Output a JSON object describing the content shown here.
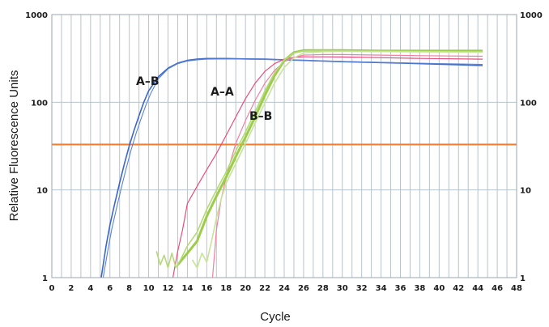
{
  "chart_data": {
    "type": "line",
    "xlabel": "Cycle",
    "ylabel": "Relative Fluorescence Units",
    "xlim": [
      0,
      48
    ],
    "x_ticks": [
      "0",
      "2",
      "4",
      "6",
      "8",
      "10",
      "12",
      "14",
      "16",
      "18",
      "20",
      "22",
      "24",
      "26",
      "28",
      "30",
      "32",
      "34",
      "36",
      "38",
      "40",
      "42",
      "44",
      "46",
      "48"
    ],
    "ylim": [
      1,
      1000
    ],
    "y_scale": "log",
    "y_ticks": [
      {
        "value": 1,
        "label": "1"
      },
      {
        "value": 10,
        "label": "10"
      },
      {
        "value": 100,
        "label": "100"
      },
      {
        "value": 1000,
        "label": "1000"
      }
    ],
    "y_ticks_right": true,
    "grid": true,
    "threshold": 33,
    "threshold_color": "#f07a2e",
    "background_color": "#ffffff",
    "grid_color": "#b8c4cc",
    "series": [
      {
        "name": "A–B",
        "color": "#3b67c9",
        "width": 1.6,
        "x": [
          5.1,
          5.6,
          6,
          6.5,
          7,
          7.5,
          8,
          8.5,
          9,
          9.5,
          10,
          11,
          12,
          13,
          14,
          15,
          16,
          17,
          18,
          20,
          22,
          24,
          26,
          30,
          36,
          40,
          44.5
        ],
        "y": [
          1,
          2.3,
          4,
          7,
          12,
          20,
          32,
          48,
          70,
          100,
          135,
          195,
          245,
          280,
          300,
          310,
          315,
          315,
          315,
          312,
          310,
          305,
          300,
          290,
          280,
          272,
          262
        ]
      },
      {
        "name": "",
        "color": "#5a82d6",
        "width": 1.1,
        "x": [
          5.3,
          5.8,
          6.2,
          6.7,
          7.2,
          7.7,
          8.2,
          8.7,
          9.2,
          9.7,
          10.2,
          11,
          12,
          13,
          14,
          15,
          16,
          18,
          20,
          24,
          30,
          36,
          44.5
        ],
        "y": [
          1,
          2.1,
          3.6,
          6.3,
          10.8,
          18,
          29,
          44,
          64,
          92,
          125,
          185,
          240,
          275,
          295,
          305,
          310,
          312,
          310,
          305,
          292,
          282,
          270
        ]
      },
      {
        "name": "A–A",
        "color": "#e84c7d",
        "width": 1.2,
        "x": [
          12.5,
          13,
          13.5,
          14,
          15,
          16,
          17,
          18,
          19,
          20,
          21,
          22,
          23,
          24,
          25,
          26,
          28,
          30,
          34,
          38,
          44.5
        ],
        "y": [
          1,
          2,
          3.5,
          7,
          11,
          17,
          26,
          42,
          68,
          110,
          165,
          225,
          275,
          310,
          325,
          330,
          330,
          328,
          322,
          316,
          310
        ]
      },
      {
        "name": "",
        "color": "#f07fa2",
        "width": 1.2,
        "x": [
          16.6,
          17,
          17.5,
          18,
          18.5,
          19,
          20,
          21,
          22,
          23,
          24,
          25,
          26,
          28,
          30,
          34,
          38,
          44.5
        ],
        "y": [
          1,
          3.5,
          8,
          14,
          22,
          34,
          62,
          105,
          165,
          230,
          290,
          325,
          345,
          350,
          350,
          345,
          340,
          335
        ]
      },
      {
        "name": "B–B",
        "color": "#9ccc4a",
        "width": 3,
        "x": [
          13,
          14,
          15,
          16,
          17,
          18,
          19,
          20,
          21,
          22,
          23,
          24,
          25,
          26,
          28,
          30,
          34,
          38,
          44.5
        ],
        "y": [
          1.4,
          1.9,
          2.6,
          5,
          8.5,
          14,
          24,
          40,
          68,
          120,
          200,
          300,
          370,
          390,
          390,
          390,
          385,
          385,
          385
        ]
      },
      {
        "name": "",
        "color": "#b4d977",
        "width": 1.6,
        "x": [
          10.8,
          11.2,
          11.6,
          12,
          12.4,
          12.8,
          13.3,
          14,
          15,
          16,
          17,
          18,
          19,
          20,
          21,
          22,
          23,
          24,
          25,
          26,
          28,
          30,
          36,
          44.5
        ],
        "y": [
          2,
          1.4,
          1.8,
          1.3,
          1.9,
          1.3,
          1.6,
          2.3,
          3.3,
          6,
          10,
          16,
          28,
          46,
          78,
          135,
          215,
          305,
          365,
          385,
          388,
          385,
          380,
          375
        ]
      },
      {
        "name": "",
        "color": "#c6e39a",
        "width": 1.6,
        "x": [
          14.5,
          15,
          15.5,
          16,
          16.5,
          17,
          17.5,
          18,
          19,
          20,
          21,
          22,
          23,
          24,
          25,
          26,
          28,
          30,
          36,
          44.5
        ],
        "y": [
          1.6,
          1.3,
          1.9,
          1.5,
          2.6,
          4.8,
          8,
          12,
          20,
          34,
          58,
          98,
          165,
          250,
          320,
          365,
          378,
          380,
          378,
          372
        ]
      }
    ]
  }
}
